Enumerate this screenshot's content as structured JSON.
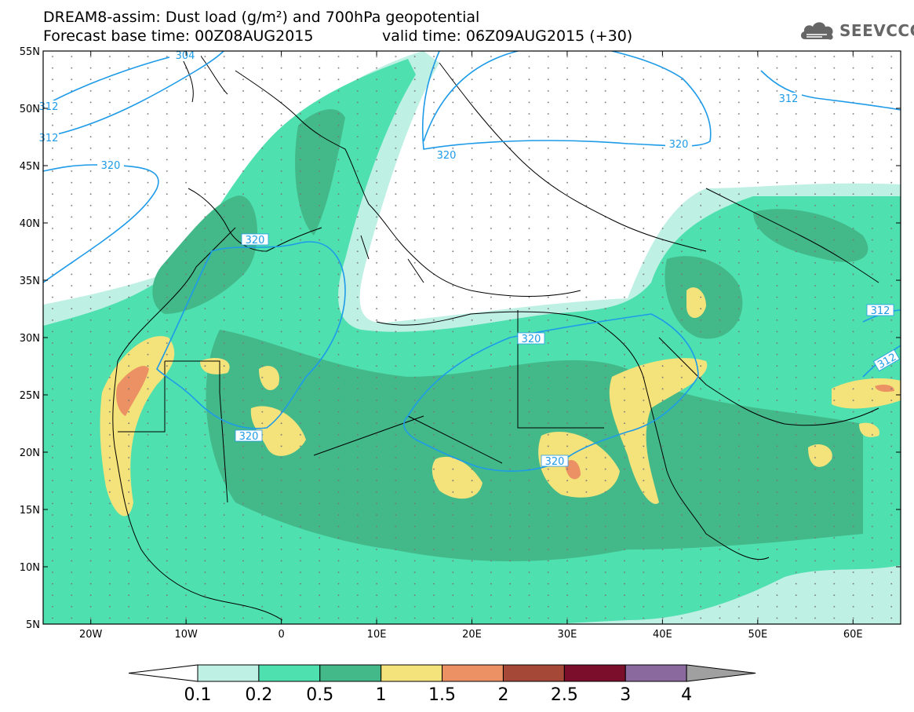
{
  "header": {
    "title": "DREAM8-assim: Dust load (g/m²) and 700hPa geopotential",
    "forecast_base": "Forecast base time: 00Z08AUG2015",
    "valid_time": "valid time: 06Z09AUG2015 (+30)",
    "logo_text": "SEEVCCC"
  },
  "map": {
    "lon_range": [
      -25,
      65
    ],
    "lat_range": [
      5,
      55
    ],
    "lat_labels": [
      "55N",
      "50N",
      "45N",
      "40N",
      "35N",
      "30N",
      "25N",
      "20N",
      "15N",
      "10N",
      "5N"
    ],
    "lon_labels": [
      "20W",
      "10W",
      "0",
      "10E",
      "20E",
      "30E",
      "40E",
      "50E",
      "60E"
    ],
    "contour_labels": [
      "304",
      "312",
      "320",
      "320",
      "320",
      "320",
      "320",
      "320",
      "312",
      "312",
      "312"
    ]
  },
  "colorbar": {
    "levels": [
      "0.1",
      "0.2",
      "0.5",
      "1",
      "1.5",
      "2",
      "2.5",
      "3",
      "4"
    ],
    "colors": [
      "#bff0e4",
      "#4fe0b0",
      "#43b98a",
      "#f4e27a",
      "#ec9163",
      "#a54838",
      "#7b0e2a",
      "#8a6a9e",
      "#a0a0a0"
    ],
    "under_color": "#ffffff"
  },
  "colors": {
    "contour": "#1e9be8",
    "dust_light": "#bff0e4",
    "dust_mid": "#4fe0b0",
    "dust_dark": "#43b98a",
    "dust_yellow": "#f4e27a",
    "dust_orange": "#ec9163",
    "dust_red": "#c85a4a"
  }
}
